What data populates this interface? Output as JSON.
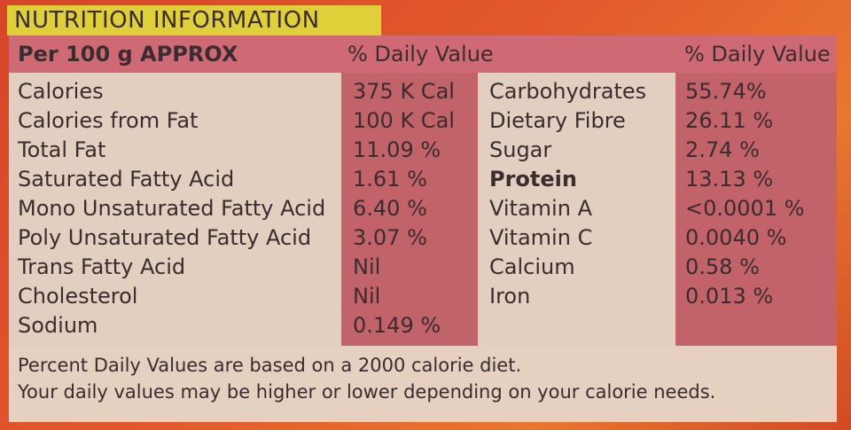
{
  "title": "NUTRITION INFORMATION",
  "header": {
    "per": "Per 100 g APPROX",
    "dv_left": "% Daily Value",
    "dv_right": "% Daily Value"
  },
  "left_rows": [
    {
      "name": "Calories",
      "value": "375 K Cal",
      "bold": false
    },
    {
      "name": "Calories from Fat",
      "value": "100 K Cal",
      "bold": false
    },
    {
      "name": "Total Fat",
      "value": "11.09 %",
      "bold": false
    },
    {
      "name": "Saturated Fatty Acid",
      "value": "1.61 %",
      "bold": false
    },
    {
      "name": "Mono Unsaturated Fatty Acid",
      "value": "6.40 %",
      "bold": false
    },
    {
      "name": "Poly Unsaturated Fatty Acid",
      "value": "3.07 %",
      "bold": false
    },
    {
      "name": "Trans Fatty Acid",
      "value": "Nil",
      "bold": false
    },
    {
      "name": "Cholesterol",
      "value": "Nil",
      "bold": false
    },
    {
      "name": "Sodium",
      "value": "0.149 %",
      "bold": false
    }
  ],
  "right_rows": [
    {
      "name": "Carbohydrates",
      "value": "55.74%",
      "bold": false
    },
    {
      "name": "Dietary Fibre",
      "value": "26.11 %",
      "bold": false
    },
    {
      "name": "Sugar",
      "value": "2.74 %",
      "bold": false
    },
    {
      "name": "Protein",
      "value": "13.13 %",
      "bold": true
    },
    {
      "name": "Vitamin A",
      "value": "<0.0001 %",
      "bold": false
    },
    {
      "name": "Vitamin C",
      "value": "0.0040 %",
      "bold": false
    },
    {
      "name": "Calcium",
      "value": "0.58 %",
      "bold": false
    },
    {
      "name": "Iron",
      "value": "0.013 %",
      "bold": false
    }
  ],
  "footer": {
    "line1": "Percent Daily Values are based on a 2000 calorie diet.",
    "line2": "Your daily values may be higher or lower depending on your calorie needs."
  },
  "colors": {
    "title_bar": "#dfd03a",
    "header_band": "#cf6a75",
    "value_band": "#c26269",
    "panel": "#e3cfc0"
  }
}
